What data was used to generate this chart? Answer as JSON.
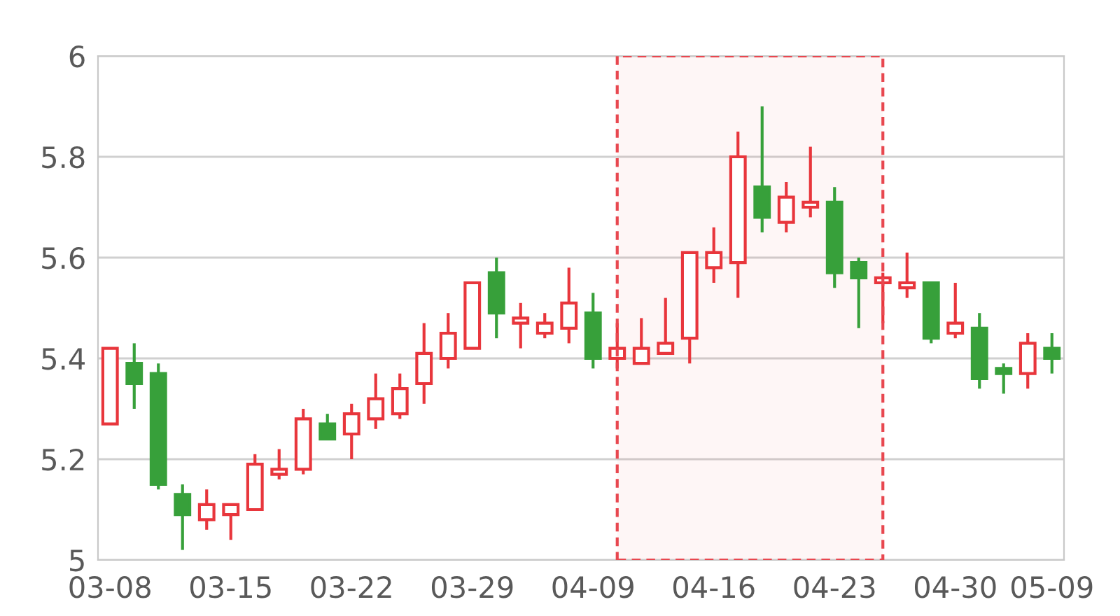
{
  "chart_data": {
    "type": "candlestick",
    "categories": [
      "03-08",
      null,
      null,
      null,
      null,
      "03-15",
      null,
      null,
      null,
      null,
      "03-22",
      null,
      null,
      null,
      null,
      "03-29",
      null,
      null,
      null,
      null,
      "04-09",
      null,
      null,
      null,
      null,
      "04-16",
      null,
      null,
      null,
      null,
      "04-23",
      null,
      null,
      null,
      null,
      "04-30",
      null,
      null,
      null,
      "05-09"
    ],
    "ohlc": [
      [
        5.27,
        5.42,
        5.27,
        5.42
      ],
      [
        5.39,
        5.43,
        5.3,
        5.35
      ],
      [
        5.37,
        5.39,
        5.14,
        5.15
      ],
      [
        5.13,
        5.15,
        5.02,
        5.09
      ],
      [
        5.08,
        5.14,
        5.06,
        5.11
      ],
      [
        5.09,
        5.11,
        5.04,
        5.11
      ],
      [
        5.1,
        5.21,
        5.1,
        5.19
      ],
      [
        5.17,
        5.22,
        5.16,
        5.18
      ],
      [
        5.18,
        5.3,
        5.17,
        5.28
      ],
      [
        5.27,
        5.29,
        5.24,
        5.24
      ],
      [
        5.25,
        5.31,
        5.2,
        5.29
      ],
      [
        5.28,
        5.37,
        5.26,
        5.32
      ],
      [
        5.29,
        5.37,
        5.28,
        5.34
      ],
      [
        5.35,
        5.47,
        5.31,
        5.41
      ],
      [
        5.4,
        5.49,
        5.38,
        5.45
      ],
      [
        5.42,
        5.55,
        5.42,
        5.55
      ],
      [
        5.57,
        5.6,
        5.44,
        5.49
      ],
      [
        5.47,
        5.51,
        5.42,
        5.48
      ],
      [
        5.45,
        5.49,
        5.44,
        5.47
      ],
      [
        5.46,
        5.58,
        5.43,
        5.51
      ],
      [
        5.49,
        5.53,
        5.38,
        5.4
      ],
      [
        5.4,
        5.47,
        5.38,
        5.42
      ],
      [
        5.39,
        5.48,
        5.39,
        5.42
      ],
      [
        5.41,
        5.52,
        5.41,
        5.43
      ],
      [
        5.44,
        5.61,
        5.39,
        5.61
      ],
      [
        5.58,
        5.66,
        5.55,
        5.61
      ],
      [
        5.59,
        5.85,
        5.52,
        5.8
      ],
      [
        5.74,
        5.9,
        5.65,
        5.68
      ],
      [
        5.67,
        5.75,
        5.65,
        5.72
      ],
      [
        5.7,
        5.82,
        5.68,
        5.71
      ],
      [
        5.71,
        5.74,
        5.54,
        5.57
      ],
      [
        5.59,
        5.6,
        5.46,
        5.56
      ],
      [
        5.55,
        5.57,
        5.47,
        5.56
      ],
      [
        5.54,
        5.61,
        5.52,
        5.55
      ],
      [
        5.55,
        5.55,
        5.43,
        5.44
      ],
      [
        5.45,
        5.55,
        5.44,
        5.47
      ],
      [
        5.46,
        5.49,
        5.34,
        5.36
      ],
      [
        5.38,
        5.39,
        5.33,
        5.37
      ],
      [
        5.37,
        5.45,
        5.34,
        5.43
      ],
      [
        5.42,
        5.45,
        5.37,
        5.4
      ]
    ],
    "colors": [
      "#e8363c",
      "#37a03a",
      "#37a03a",
      "#37a03a",
      "#e8363c",
      "#e8363c",
      "#e8363c",
      "#e8363c",
      "#e8363c",
      "#37a03a",
      "#e8363c",
      "#e8363c",
      "#e8363c",
      "#e8363c",
      "#e8363c",
      "#e8363c",
      "#37a03a",
      "#e8363c",
      "#e8363c",
      "#e8363c",
      "#37a03a",
      "#e8363c",
      "#e8363c",
      "#e8363c",
      "#e8363c",
      "#e8363c",
      "#e8363c",
      "#37a03a",
      "#e8363c",
      "#e8363c",
      "#37a03a",
      "#37a03a",
      "#e8363c",
      "#e8363c",
      "#37a03a",
      "#e8363c",
      "#37a03a",
      "#37a03a",
      "#e8363c",
      "#37a03a"
    ],
    "ylim": [
      5,
      6
    ],
    "yticks": [
      5,
      5.2,
      5.4,
      5.6,
      5.8,
      6
    ],
    "grid": "y"
  }
}
